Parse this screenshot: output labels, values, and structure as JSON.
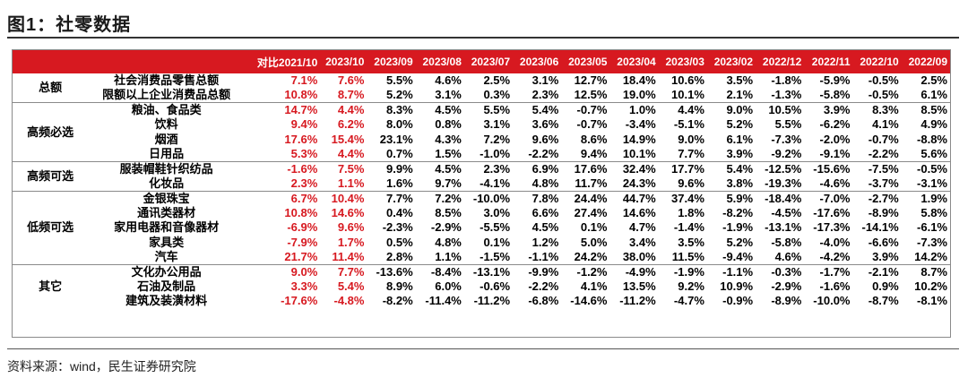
{
  "figure_title": "图1：社零数据",
  "source_note": "资料来源：wind，民生证券研究院",
  "colors": {
    "header_bg": "#d71920",
    "highlight_text": "#d71920"
  },
  "columns": [
    "对比2021/10",
    "2023/10",
    "2023/09",
    "2023/08",
    "2023/07",
    "2023/06",
    "2023/05",
    "2023/04",
    "2023/03",
    "2023/02",
    "2022/12",
    "2022/11",
    "2022/10",
    "2022/09"
  ],
  "groups": [
    {
      "name": "总额",
      "rows": [
        {
          "item": "社会消费品零售总额",
          "values": [
            "7.1%",
            "7.6%",
            "5.5%",
            "4.6%",
            "2.5%",
            "3.1%",
            "12.7%",
            "18.4%",
            "10.6%",
            "3.5%",
            "-1.8%",
            "-5.9%",
            "-0.5%",
            "2.5%"
          ]
        },
        {
          "item": "限额以上企业消费品总额",
          "values": [
            "10.8%",
            "8.7%",
            "5.2%",
            "3.1%",
            "0.3%",
            "2.3%",
            "12.5%",
            "19.0%",
            "10.1%",
            "2.1%",
            "-1.3%",
            "-5.8%",
            "-0.5%",
            "6.1%"
          ]
        }
      ]
    },
    {
      "name": "高频必选",
      "rows": [
        {
          "item": "粮油、食品类",
          "values": [
            "14.7%",
            "4.4%",
            "8.3%",
            "4.5%",
            "5.5%",
            "5.4%",
            "-0.7%",
            "1.0%",
            "4.4%",
            "9.0%",
            "10.5%",
            "3.9%",
            "8.3%",
            "8.5%"
          ]
        },
        {
          "item": "饮料",
          "values": [
            "9.4%",
            "6.2%",
            "8.0%",
            "0.8%",
            "3.1%",
            "3.6%",
            "-0.7%",
            "-3.4%",
            "-5.1%",
            "5.2%",
            "5.5%",
            "-6.2%",
            "4.1%",
            "4.9%"
          ]
        },
        {
          "item": "烟酒",
          "values": [
            "17.6%",
            "15.4%",
            "23.1%",
            "4.3%",
            "7.2%",
            "9.6%",
            "8.6%",
            "14.9%",
            "9.0%",
            "6.1%",
            "-7.3%",
            "-2.0%",
            "-0.7%",
            "-8.8%"
          ]
        },
        {
          "item": "日用品",
          "values": [
            "5.3%",
            "4.4%",
            "0.7%",
            "1.5%",
            "-1.0%",
            "-2.2%",
            "9.4%",
            "10.1%",
            "7.7%",
            "3.9%",
            "-9.2%",
            "-9.1%",
            "-2.2%",
            "5.6%"
          ]
        }
      ]
    },
    {
      "name": "高频可选",
      "rows": [
        {
          "item": "服装帽鞋针织纺品",
          "values": [
            "-1.6%",
            "7.5%",
            "9.9%",
            "4.5%",
            "2.3%",
            "6.9%",
            "17.6%",
            "32.4%",
            "17.7%",
            "5.4%",
            "-12.5%",
            "-15.6%",
            "-7.5%",
            "-0.5%"
          ]
        },
        {
          "item": "化妆品",
          "values": [
            "2.3%",
            "1.1%",
            "1.6%",
            "9.7%",
            "-4.1%",
            "4.8%",
            "11.7%",
            "24.3%",
            "9.6%",
            "3.8%",
            "-19.3%",
            "-4.6%",
            "-3.7%",
            "-3.1%"
          ]
        }
      ]
    },
    {
      "name": "低频可选",
      "rows": [
        {
          "item": "金银珠宝",
          "values": [
            "6.7%",
            "10.4%",
            "7.7%",
            "7.2%",
            "-10.0%",
            "7.8%",
            "24.4%",
            "44.7%",
            "37.4%",
            "5.9%",
            "-18.4%",
            "-7.0%",
            "-2.7%",
            "1.9%"
          ]
        },
        {
          "item": "通讯类器材",
          "values": [
            "10.8%",
            "14.6%",
            "0.4%",
            "8.5%",
            "3.0%",
            "6.6%",
            "27.4%",
            "14.6%",
            "1.8%",
            "-8.2%",
            "-4.5%",
            "-17.6%",
            "-8.9%",
            "5.8%"
          ]
        },
        {
          "item": "家用电器和音像器材",
          "values": [
            "-6.9%",
            "9.6%",
            "-2.3%",
            "-2.9%",
            "-5.5%",
            "4.5%",
            "0.1%",
            "4.7%",
            "-1.4%",
            "-1.9%",
            "-13.1%",
            "-17.3%",
            "-14.1%",
            "-6.1%"
          ]
        },
        {
          "item": "家具类",
          "values": [
            "-7.9%",
            "1.7%",
            "0.5%",
            "4.8%",
            "0.1%",
            "1.2%",
            "5.0%",
            "3.4%",
            "3.5%",
            "5.2%",
            "-5.8%",
            "-4.0%",
            "-6.6%",
            "-7.3%"
          ]
        },
        {
          "item": "汽车",
          "values": [
            "21.7%",
            "11.4%",
            "2.8%",
            "1.1%",
            "-1.5%",
            "-1.1%",
            "24.2%",
            "38.0%",
            "11.5%",
            "-9.4%",
            "4.6%",
            "-4.2%",
            "3.9%",
            "14.2%"
          ]
        }
      ]
    },
    {
      "name": "其它",
      "rows": [
        {
          "item": "文化办公用品",
          "values": [
            "9.0%",
            "7.7%",
            "-13.6%",
            "-8.4%",
            "-13.1%",
            "-9.9%",
            "-1.2%",
            "-4.9%",
            "-1.9%",
            "-1.1%",
            "-0.3%",
            "-1.7%",
            "-2.1%",
            "8.7%"
          ]
        },
        {
          "item": "石油及制品",
          "values": [
            "3.3%",
            "5.4%",
            "8.9%",
            "6.0%",
            "-0.6%",
            "-2.2%",
            "4.1%",
            "13.5%",
            "9.2%",
            "10.9%",
            "-2.9%",
            "-1.6%",
            "0.9%",
            "10.2%"
          ]
        },
        {
          "item": "建筑及装潢材料",
          "values": [
            "-17.6%",
            "-4.8%",
            "-8.2%",
            "-11.4%",
            "-11.2%",
            "-6.8%",
            "-14.6%",
            "-11.2%",
            "-4.7%",
            "-0.9%",
            "-8.9%",
            "-10.0%",
            "-8.7%",
            "-8.1%"
          ]
        }
      ]
    }
  ]
}
